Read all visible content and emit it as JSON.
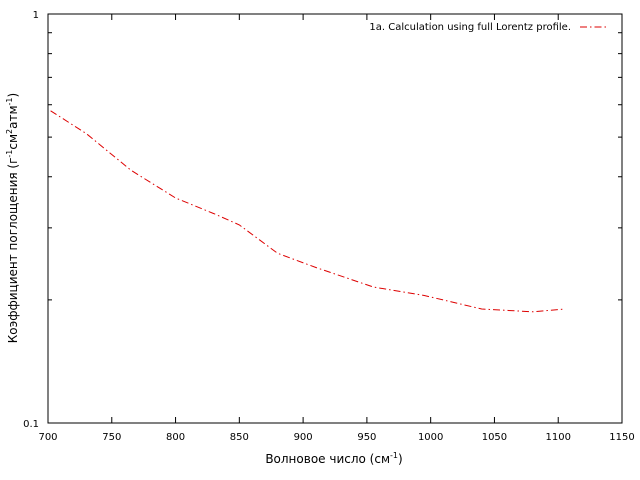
{
  "chart_data": {
    "type": "line",
    "xlabel": "Волновое число (см",
    "xlabel_sup": "-1",
    "xlabel_end": ")",
    "ylabel_parts": [
      "Коэффициент поглощения (г",
      "-1",
      "см",
      "2",
      "атм",
      "-1",
      ")"
    ],
    "xlim": [
      700,
      1150
    ],
    "ylim": [
      0.1,
      1
    ],
    "yscale": "log",
    "xticks": [
      700,
      750,
      800,
      850,
      900,
      950,
      1000,
      1050,
      1100,
      1150
    ],
    "xtick_labels": [
      "700",
      "750",
      "800",
      "850",
      "900",
      "950",
      "1000",
      "1050",
      "1100",
      "1150"
    ],
    "yticks_major": [
      0.1,
      1
    ],
    "ytick_labels": [
      "0.1",
      "1"
    ],
    "grid": false,
    "legend_position": "top-right",
    "series": [
      {
        "name": "1a. Calculation using full Lorentz profile.",
        "color": "#dd0000",
        "style": "dash-dot",
        "x": [
          702,
          730,
          765,
          800,
          830,
          850,
          880,
          910,
          955,
          995,
          1040,
          1080,
          1105
        ],
        "y": [
          0.58,
          0.51,
          0.415,
          0.355,
          0.325,
          0.305,
          0.26,
          0.24,
          0.215,
          0.205,
          0.19,
          0.187,
          0.19
        ]
      }
    ]
  }
}
